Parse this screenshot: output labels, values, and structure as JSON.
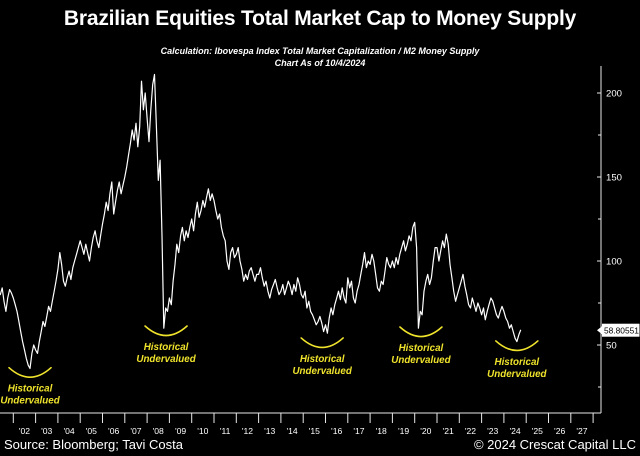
{
  "header": {
    "title": "Brazilian Equities Total Market Cap to Money Supply",
    "subtitle_line1": "Calculation: Ibovespa Index Total Market Capitalization / M2 Money Supply",
    "subtitle_line2": "Chart As of 10/4/2024"
  },
  "footer": {
    "source": "Source: Bloomberg; Tavi Costa",
    "copyright": "© 2024 Crescat Capital LLC"
  },
  "colors": {
    "background": "#000000",
    "line": "#ffffff",
    "axis": "#e8e8e8",
    "tick_label": "#ffffff",
    "annotation": "#efe32c",
    "last_value_bg": "#ffffff",
    "last_value_text": "#000000"
  },
  "chart_data": {
    "type": "line",
    "title": "Brazilian Equities Total Market Cap to Money Supply",
    "series_name": "Ibovespa Index Total Market Capitalization / M2 Money Supply",
    "xlabel": "",
    "ylabel": "",
    "grid": false,
    "legend": false,
    "x_tick_labels": [
      "'02",
      "'03",
      "'04",
      "'05",
      "'06",
      "'07",
      "'08",
      "'09",
      "'10",
      "'11",
      "'12",
      "'13",
      "'14",
      "'15",
      "'16",
      "'17",
      "'18",
      "'19",
      "'20",
      "'21",
      "'22",
      "'23",
      "'24",
      "'25",
      "'26",
      "'27"
    ],
    "x_axis_start_year": 2002,
    "x_axis_end_year": 2028,
    "y_ticks_major": [
      50,
      100,
      150,
      200
    ],
    "y_ticks_minor": [
      25,
      75,
      125,
      175
    ],
    "y_axis_range_approx": [
      10,
      216
    ],
    "last_value": 58.80551,
    "last_value_label": "58.80551",
    "start_year": 2001.4167,
    "points_per_year": 12,
    "values": [
      80,
      84,
      76,
      70,
      78,
      83,
      81,
      78,
      74,
      70,
      64,
      58,
      52,
      47,
      42,
      38,
      36,
      45,
      50,
      47,
      45,
      52,
      58,
      64,
      61,
      67,
      73,
      70,
      76,
      82,
      88,
      95,
      105,
      98,
      88,
      85,
      90,
      94,
      89,
      96,
      100,
      104,
      108,
      112,
      108,
      104,
      110,
      105,
      100,
      108,
      114,
      118,
      112,
      108,
      115,
      122,
      128,
      135,
      130,
      140,
      147,
      128,
      135,
      142,
      147,
      140,
      145,
      150,
      156,
      163,
      170,
      178,
      172,
      182,
      168,
      180,
      207,
      190,
      200,
      185,
      171,
      190,
      205,
      211,
      180,
      148,
      160,
      115,
      60,
      72,
      70,
      78,
      74,
      88,
      98,
      110,
      105,
      115,
      120,
      112,
      118,
      114,
      120,
      125,
      118,
      128,
      135,
      126,
      130,
      136,
      132,
      138,
      143,
      136,
      140,
      136,
      130,
      125,
      128,
      120,
      115,
      112,
      100,
      95,
      105,
      108,
      102,
      104,
      108,
      100,
      95,
      88,
      92,
      89,
      94,
      96,
      92,
      88,
      92,
      92,
      96,
      90,
      85,
      88,
      82,
      78,
      83,
      86,
      89,
      84,
      80,
      82,
      86,
      80,
      84,
      88,
      85,
      80,
      86,
      82,
      90,
      86,
      80,
      78,
      82,
      72,
      76,
      70,
      68,
      65,
      62,
      64,
      67,
      63,
      58,
      62,
      57,
      66,
      72,
      68,
      74,
      78,
      82,
      77,
      84,
      78,
      75,
      90,
      84,
      88,
      78,
      75,
      82,
      86,
      92,
      98,
      105,
      96,
      100,
      98,
      104,
      100,
      92,
      84,
      82,
      88,
      86,
      94,
      102,
      98,
      96,
      100,
      96,
      102,
      98,
      104,
      108,
      112,
      106,
      110,
      115,
      112,
      120,
      123,
      108,
      60,
      70,
      68,
      82,
      88,
      92,
      86,
      90,
      100,
      108,
      108,
      100,
      106,
      112,
      108,
      116,
      110,
      98,
      90,
      82,
      76,
      80,
      84,
      88,
      92,
      85,
      80,
      74,
      72,
      78,
      74,
      70,
      75,
      72,
      68,
      72,
      65,
      70,
      74,
      78,
      76,
      72,
      68,
      66,
      70,
      73,
      70,
      66,
      64,
      60,
      62,
      58,
      54,
      52,
      56,
      58.80551
    ],
    "annotations": [
      {
        "line1": "Historical",
        "line2": "Undervalued",
        "year": 2002.75,
        "arc_value": 36.5
      },
      {
        "line1": "Historical",
        "line2": "Undervalued",
        "year": 2008.85,
        "arc_value": 61.3
      },
      {
        "line1": "Historical",
        "line2": "Undervalued",
        "year": 2015.85,
        "arc_value": 54.2
      },
      {
        "line1": "Historical",
        "line2": "Undervalued",
        "year": 2020.28,
        "arc_value": 60.7
      },
      {
        "line1": "Historical",
        "line2": "Undervalued",
        "year": 2024.58,
        "arc_value": 52.4
      }
    ]
  }
}
